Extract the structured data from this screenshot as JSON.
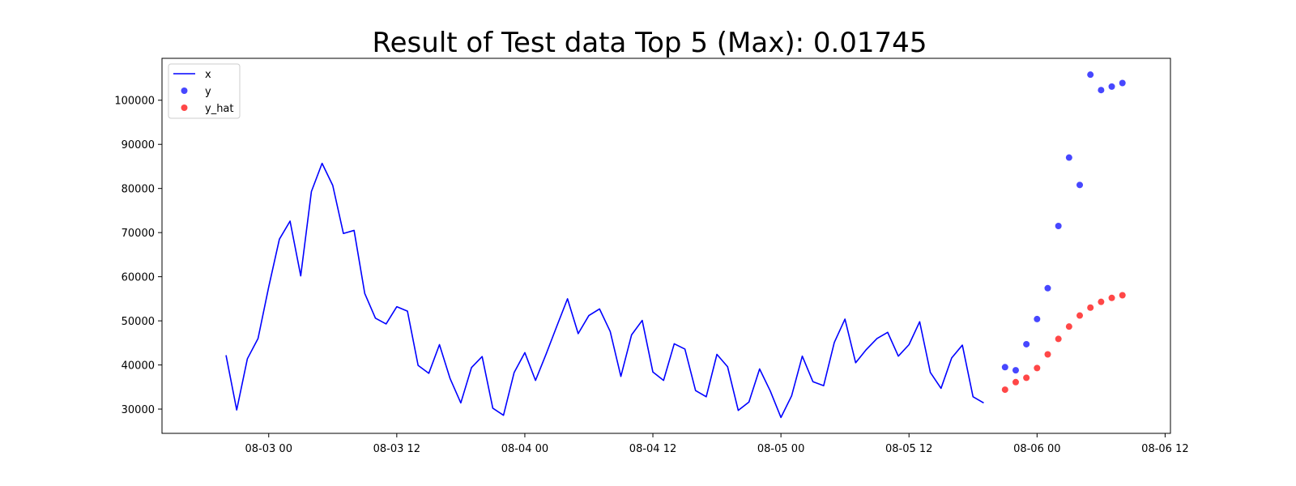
{
  "chart_data": {
    "type": "line",
    "title": "Result of Test data Top 5 (Max): 0.01745",
    "xlabel": "",
    "ylabel": "",
    "x_axis_type": "datetime",
    "xlim": [
      "2024-08-02 14:00",
      "2024-08-06 12:30"
    ],
    "ylim": [
      24500,
      109500
    ],
    "grid": false,
    "legend_position": "top-left",
    "x_tick_labels": [
      "08-03 00",
      "08-03 12",
      "08-04 00",
      "08-04 12",
      "08-05 00",
      "08-05 12",
      "08-06 00",
      "08-06 12"
    ],
    "x_tick_values": [
      "2024-08-03 00:00",
      "2024-08-03 12:00",
      "2024-08-04 00:00",
      "2024-08-04 12:00",
      "2024-08-05 00:00",
      "2024-08-05 12:00",
      "2024-08-06 00:00",
      "2024-08-06 12:00"
    ],
    "y_ticks": [
      30000,
      40000,
      50000,
      60000,
      70000,
      80000,
      90000,
      100000
    ],
    "y_tick_labels": [
      "30000",
      "40000",
      "50000",
      "60000",
      "70000",
      "80000",
      "90000",
      "100000"
    ],
    "series": [
      {
        "name": "x",
        "kind": "line",
        "color": "#0000ff",
        "x_start": "2024-08-02 20:00",
        "x_step_hours": 1,
        "values": [
          42200,
          29800,
          41400,
          46000,
          57700,
          68500,
          72600,
          60200,
          79300,
          85700,
          80700,
          69800,
          70500,
          56200,
          50600,
          49300,
          53200,
          52200,
          39900,
          38100,
          44600,
          36900,
          31400,
          39400,
          41900,
          30200,
          28600,
          38300,
          42800,
          36500,
          42500,
          48800,
          55000,
          47100,
          51200,
          52700,
          47600,
          37400,
          46800,
          50100,
          38400,
          36500,
          44800,
          43600,
          34200,
          32800,
          42400,
          39600,
          29700,
          31600,
          39100,
          34100,
          28100,
          33000,
          42000,
          36200,
          35300,
          45100,
          50400,
          40500,
          43500,
          46000,
          47400,
          42000,
          44600,
          49800,
          38300,
          34700,
          41600,
          44500,
          32800,
          31400
        ]
      },
      {
        "name": "y",
        "kind": "scatter",
        "color": "#0000ff",
        "x_start": "2024-08-05 21:00",
        "x_step_hours": 1,
        "values": [
          39500,
          38800,
          44700,
          50400,
          57400,
          71500,
          87000,
          80800,
          105800,
          102300,
          103100,
          103900
        ]
      },
      {
        "name": "y_hat",
        "kind": "scatter",
        "color": "#ff0000",
        "x_start": "2024-08-05 21:00",
        "x_step_hours": 1,
        "values": [
          34400,
          36100,
          37100,
          39300,
          42400,
          45900,
          48700,
          51200,
          53000,
          54300,
          55200,
          55800
        ]
      }
    ]
  }
}
